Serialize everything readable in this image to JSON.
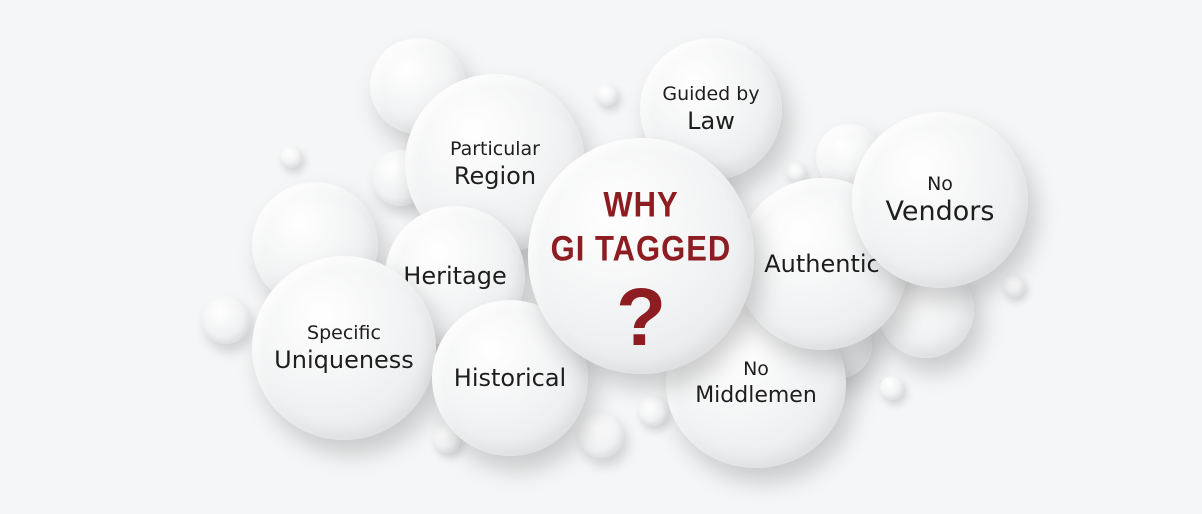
{
  "center": {
    "title_line1": "WHY",
    "title_line2": "GI TAGGED",
    "symbol": "?"
  },
  "bubbles": {
    "particular_region": {
      "line1": "Particular",
      "line2": "Region"
    },
    "guided_by_law": {
      "line1": "Guided by",
      "line2": "Law"
    },
    "no_vendors": {
      "line1": "No",
      "line2": "Vendors"
    },
    "heritage": {
      "label": "Heritage"
    },
    "authentic": {
      "label": "Authentic"
    },
    "specific_uniqueness": {
      "line1": "Specific",
      "line2": "Uniqueness"
    },
    "historical": {
      "label": "Historical"
    },
    "no_middlemen": {
      "line1": "No",
      "line2": "Middlemen"
    }
  },
  "colors": {
    "title": "#8e1d22",
    "text": "#1e1e1e",
    "background": "#f4f6f7"
  }
}
